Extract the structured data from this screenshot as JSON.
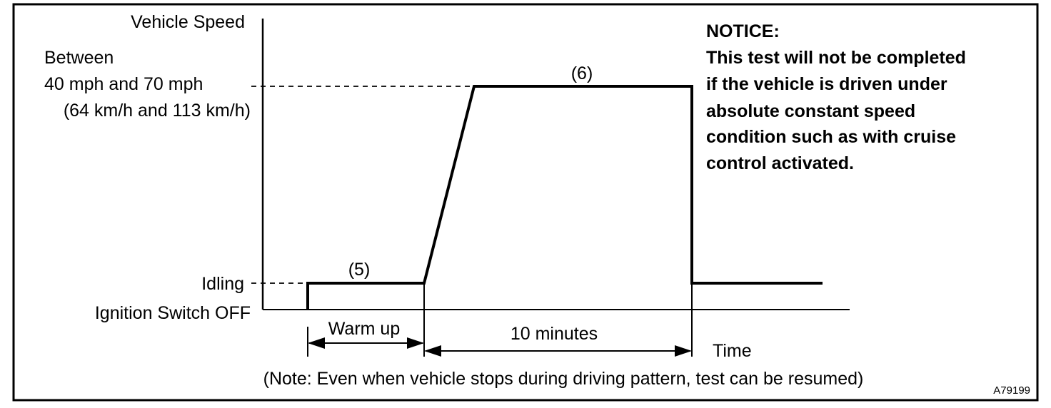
{
  "diagram": {
    "y_axis_label": "Vehicle Speed",
    "speed_label_line1": "Between",
    "speed_label_line2": "40 mph and 70 mph",
    "speed_label_line3": "(64 km/h and 113 km/h)",
    "idling_label": "Idling",
    "ignition_label": "Ignition Switch OFF",
    "segment_5_label": "(5)",
    "segment_6_label": "(6)",
    "warmup_label": "Warm up",
    "duration_label": "10 minutes",
    "x_axis_label": "Time",
    "note": "(Note: Even when vehicle stops during driving pattern, test can be resumed)",
    "figure_code": "A79199"
  },
  "notice": {
    "title": "NOTICE:",
    "lines": [
      "This test will not be completed",
      "if the vehicle is driven under",
      "absolute constant speed",
      "condition such as with cruise",
      "control activated."
    ]
  },
  "colors": {
    "ink": "#000000",
    "background": "#ffffff"
  }
}
